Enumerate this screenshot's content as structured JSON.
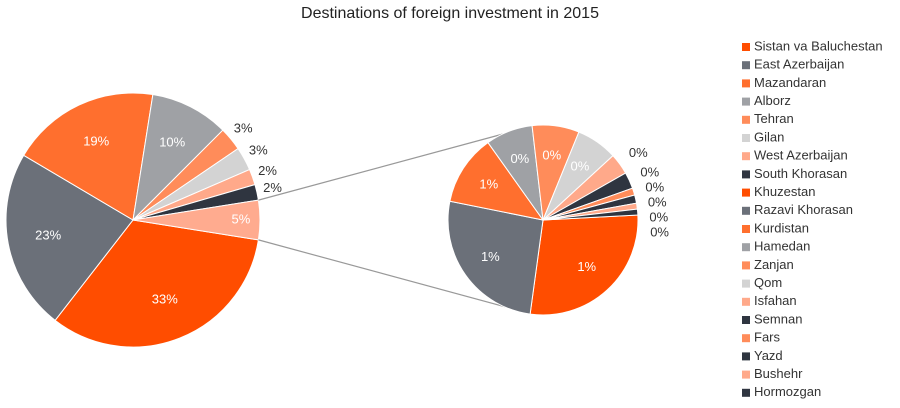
{
  "chart_data": {
    "type": "pie-of-pie",
    "title": "Destinations of foreign investment in 2015",
    "categories": [
      "Sistan va Baluchestan",
      "East Azerbaijan",
      "Mazandaran",
      "Alborz",
      "Tehran",
      "Gilan",
      "West Azerbaijan",
      "South Khorasan",
      "Khuzestan",
      "Razavi Khorasan",
      "Kurdistan",
      "Hamedan",
      "Zanjan",
      "Qom",
      "Isfahan",
      "Semnan",
      "Fars",
      "Yazd",
      "Bushehr",
      "Hormozgan"
    ],
    "values": [
      33,
      23,
      19,
      10,
      3,
      3,
      2,
      2,
      1.4,
      1.3,
      0.6,
      0.4,
      0.4,
      0.35,
      0.18,
      0.14,
      0.06,
      0.07,
      0.05,
      0.05
    ],
    "value_labels": [
      "33%",
      "23%",
      "19%",
      "10%",
      "3%",
      "3%",
      "2%",
      "2%",
      "1%",
      "1%",
      "1%",
      "0%",
      "0%",
      "0%",
      "0%",
      "0%",
      "0%",
      "0%",
      "0%",
      "0%"
    ],
    "colors": [
      "#ff4d00",
      "#6b7079",
      "#ff6f2e",
      "#9fa1a5",
      "#ff8c5a",
      "#d3d3d3",
      "#ffa98a",
      "#2f3540",
      "#ff4d00",
      "#6b7079",
      "#ff6f2e",
      "#9fa1a5",
      "#ff8c5a",
      "#d3d3d3",
      "#ffa98a",
      "#2f3540",
      "#ff8c5a",
      "#2f3540",
      "#ffa98a",
      "#2f3540"
    ],
    "split_index": 8,
    "secondary_total": {
      "value": 5,
      "label": "5%",
      "color": "#ffab8f"
    }
  }
}
